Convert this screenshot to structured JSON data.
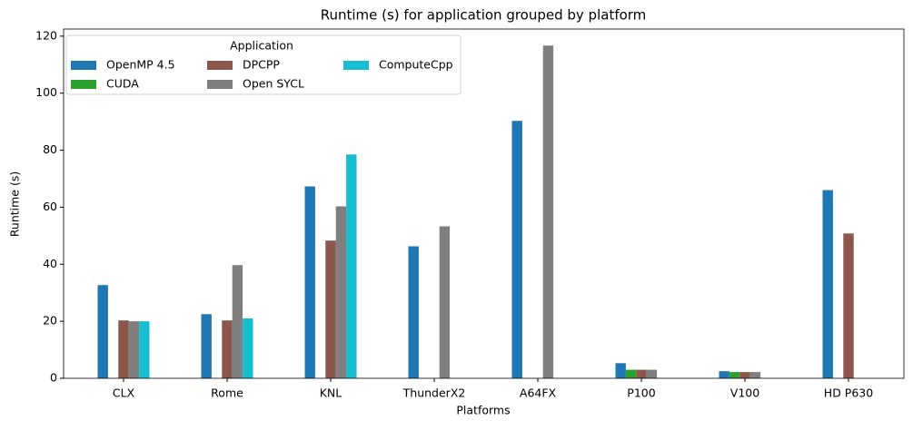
{
  "chart_data": {
    "type": "bar",
    "title": "Runtime (s) for application grouped by platform",
    "x_label": "Platforms",
    "y_label": "Runtime (s)",
    "categories": [
      "CLX",
      "Rome",
      "KNL",
      "ThunderX2",
      "A64FX",
      "P100",
      "V100",
      "HD P630"
    ],
    "series": [
      {
        "name": "OpenMP 4.5",
        "color": "#1f77b4",
        "values": [
          32.7,
          22.5,
          67.3,
          46.3,
          90.3,
          5.3,
          2.5,
          66
        ]
      },
      {
        "name": "CUDA",
        "color": "#2ca02c",
        "values": [
          null,
          null,
          null,
          null,
          null,
          3,
          2.2,
          null
        ]
      },
      {
        "name": "DPCPP",
        "color": "#8c564b",
        "values": [
          20.3,
          20.3,
          48.3,
          null,
          null,
          3,
          2.2,
          50.8
        ]
      },
      {
        "name": "Open SYCL",
        "color": "#7f7f7f",
        "values": [
          20,
          39.7,
          60.3,
          53.3,
          116.7,
          3,
          2.2,
          null
        ]
      },
      {
        "name": "ComputeCpp",
        "color": "#17becf",
        "values": [
          20,
          21,
          78.5,
          null,
          null,
          null,
          null,
          null
        ]
      }
    ],
    "legend_title": "Application",
    "legend_position": "upper left",
    "legend_columns": 3,
    "ylim": [
      0,
      122.5
    ],
    "yticks": [
      0,
      20,
      40,
      60,
      80,
      100,
      120
    ],
    "grid": false
  }
}
